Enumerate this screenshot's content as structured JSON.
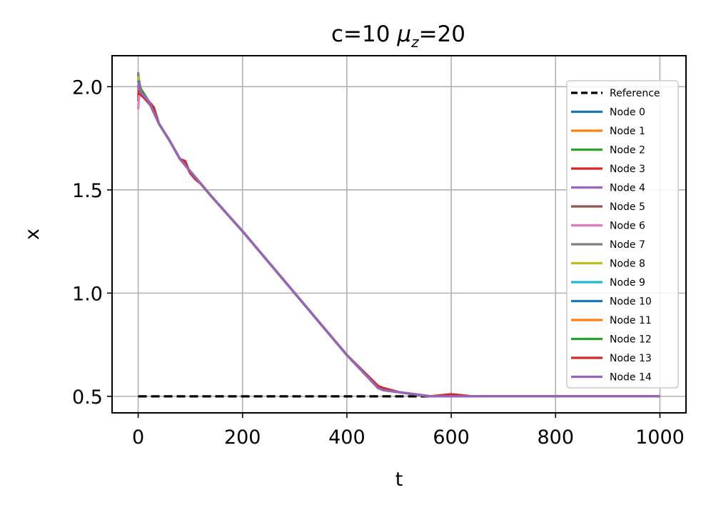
{
  "chart_data": {
    "type": "line",
    "title_main": "c=10 ",
    "title_mu": "μ",
    "title_sub": "z",
    "title_rest": "=20",
    "xlabel": "t",
    "ylabel": "x",
    "xlim": [
      -50,
      1050
    ],
    "ylim": [
      0.42,
      2.15
    ],
    "xticks": [
      0,
      200,
      400,
      600,
      800,
      1000
    ],
    "xtick_labels": [
      "0",
      "200",
      "400",
      "600",
      "800",
      "1000"
    ],
    "yticks": [
      0.5,
      1.0,
      1.5,
      2.0
    ],
    "ytick_labels": [
      "0.5",
      "1.0",
      "1.5",
      "2.0"
    ],
    "grid": true,
    "legend_position": "right",
    "reference": {
      "name": "Reference",
      "color": "#000000",
      "style": "dashed",
      "x": [
        0,
        1000
      ],
      "y": [
        0.5,
        0.5
      ]
    },
    "series": [
      {
        "name": "Node 0",
        "color": "#1f77b4",
        "x": [
          0,
          2,
          5,
          10,
          20,
          40,
          60,
          80,
          100,
          120,
          140,
          200,
          300,
          400,
          460,
          470,
          500,
          530,
          560,
          600,
          640,
          700,
          800,
          900,
          1000
        ],
        "y": [
          2.06,
          2.01,
          1.98,
          1.96,
          1.93,
          1.82,
          1.74,
          1.65,
          1.59,
          1.53,
          1.47,
          1.3,
          1.0,
          0.7,
          0.54,
          0.53,
          0.52,
          0.51,
          0.5,
          0.5,
          0.5,
          0.5,
          0.5,
          0.5,
          0.5
        ]
      },
      {
        "name": "Node 1",
        "color": "#ff7f0e",
        "x": [
          0,
          2,
          5,
          10,
          20,
          40,
          60,
          80,
          100,
          120,
          140,
          200,
          300,
          400,
          460,
          470,
          500,
          530,
          560,
          600,
          640,
          700,
          800,
          900,
          1000
        ],
        "y": [
          1.95,
          2.0,
          1.97,
          1.96,
          1.93,
          1.82,
          1.74,
          1.65,
          1.59,
          1.53,
          1.47,
          1.3,
          1.0,
          0.7,
          0.54,
          0.53,
          0.52,
          0.51,
          0.5,
          0.5,
          0.5,
          0.5,
          0.5,
          0.5,
          0.5
        ]
      },
      {
        "name": "Node 2",
        "color": "#2ca02c",
        "x": [
          0,
          2,
          5,
          10,
          20,
          40,
          60,
          80,
          100,
          120,
          140,
          200,
          300,
          400,
          460,
          470,
          500,
          530,
          560,
          600,
          640,
          700,
          800,
          900,
          1000
        ],
        "y": [
          2.04,
          2.02,
          1.99,
          1.97,
          1.93,
          1.82,
          1.74,
          1.65,
          1.59,
          1.53,
          1.47,
          1.3,
          1.0,
          0.7,
          0.54,
          0.53,
          0.52,
          0.51,
          0.5,
          0.5,
          0.5,
          0.5,
          0.5,
          0.5,
          0.5
        ]
      },
      {
        "name": "Node 3",
        "color": "#d62728",
        "x": [
          0,
          2,
          5,
          10,
          20,
          30,
          40,
          60,
          80,
          90,
          100,
          110,
          120,
          140,
          200,
          300,
          400,
          460,
          470,
          500,
          530,
          560,
          600,
          640,
          700,
          800,
          900,
          1000
        ],
        "y": [
          1.93,
          1.99,
          1.96,
          1.95,
          1.92,
          1.89,
          1.82,
          1.74,
          1.65,
          1.64,
          1.58,
          1.56,
          1.53,
          1.47,
          1.3,
          1.0,
          0.7,
          0.55,
          0.54,
          0.52,
          0.51,
          0.5,
          0.51,
          0.5,
          0.5,
          0.5,
          0.5,
          0.5
        ]
      },
      {
        "name": "Node 4",
        "color": "#9467bd",
        "x": [
          0,
          2,
          5,
          10,
          20,
          40,
          60,
          80,
          100,
          120,
          140,
          200,
          300,
          400,
          460,
          470,
          500,
          530,
          560,
          600,
          640,
          700,
          800,
          900,
          1000
        ],
        "y": [
          2.0,
          2.03,
          1.98,
          1.96,
          1.93,
          1.82,
          1.74,
          1.65,
          1.59,
          1.53,
          1.47,
          1.3,
          1.0,
          0.7,
          0.54,
          0.53,
          0.52,
          0.51,
          0.5,
          0.5,
          0.5,
          0.5,
          0.5,
          0.5,
          0.5
        ]
      },
      {
        "name": "Node 5",
        "color": "#8c564b",
        "x": [
          0,
          2,
          5,
          10,
          20,
          40,
          60,
          80,
          100,
          120,
          140,
          200,
          300,
          400,
          460,
          470,
          500,
          530,
          560,
          600,
          640,
          700,
          800,
          900,
          1000
        ],
        "y": [
          1.98,
          2.0,
          1.97,
          1.96,
          1.93,
          1.82,
          1.74,
          1.65,
          1.59,
          1.53,
          1.47,
          1.3,
          1.0,
          0.7,
          0.54,
          0.53,
          0.52,
          0.51,
          0.5,
          0.5,
          0.5,
          0.5,
          0.5,
          0.5,
          0.5
        ]
      },
      {
        "name": "Node 6",
        "color": "#e377c2",
        "x": [
          0,
          2,
          5,
          10,
          20,
          40,
          60,
          80,
          100,
          120,
          140,
          200,
          300,
          400,
          460,
          470,
          500,
          530,
          560,
          600,
          640,
          700,
          800,
          900,
          1000
        ],
        "y": [
          1.89,
          1.97,
          1.97,
          1.96,
          1.93,
          1.82,
          1.74,
          1.65,
          1.59,
          1.53,
          1.47,
          1.3,
          1.0,
          0.7,
          0.54,
          0.53,
          0.52,
          0.51,
          0.5,
          0.5,
          0.5,
          0.5,
          0.5,
          0.5,
          0.5
        ]
      },
      {
        "name": "Node 7",
        "color": "#7f7f7f",
        "x": [
          0,
          2,
          5,
          10,
          20,
          40,
          60,
          80,
          100,
          120,
          140,
          200,
          300,
          400,
          460,
          470,
          500,
          530,
          560,
          600,
          640,
          700,
          800,
          900,
          1000
        ],
        "y": [
          2.07,
          2.02,
          1.98,
          1.96,
          1.93,
          1.82,
          1.74,
          1.65,
          1.59,
          1.53,
          1.47,
          1.3,
          1.0,
          0.7,
          0.54,
          0.53,
          0.52,
          0.51,
          0.5,
          0.5,
          0.5,
          0.5,
          0.5,
          0.5,
          0.5
        ]
      },
      {
        "name": "Node 8",
        "color": "#bcbd22",
        "x": [
          0,
          2,
          5,
          10,
          20,
          40,
          60,
          80,
          100,
          120,
          140,
          200,
          300,
          400,
          460,
          470,
          500,
          530,
          560,
          600,
          640,
          700,
          800,
          900,
          1000
        ],
        "y": [
          2.05,
          2.01,
          1.98,
          1.96,
          1.93,
          1.82,
          1.74,
          1.65,
          1.59,
          1.53,
          1.47,
          1.3,
          1.0,
          0.7,
          0.54,
          0.53,
          0.52,
          0.51,
          0.5,
          0.5,
          0.5,
          0.5,
          0.5,
          0.5,
          0.5
        ]
      },
      {
        "name": "Node 9",
        "color": "#17becf",
        "x": [
          0,
          2,
          5,
          10,
          20,
          40,
          60,
          80,
          100,
          120,
          140,
          200,
          300,
          400,
          460,
          470,
          500,
          530,
          560,
          600,
          640,
          700,
          800,
          900,
          1000
        ],
        "y": [
          2.01,
          2.0,
          1.97,
          1.96,
          1.93,
          1.82,
          1.74,
          1.65,
          1.59,
          1.53,
          1.47,
          1.3,
          1.0,
          0.7,
          0.54,
          0.53,
          0.52,
          0.51,
          0.5,
          0.5,
          0.5,
          0.5,
          0.5,
          0.5,
          0.5
        ]
      },
      {
        "name": "Node 10",
        "color": "#1f77b4",
        "x": [
          0,
          2,
          5,
          10,
          20,
          40,
          60,
          80,
          100,
          120,
          140,
          200,
          300,
          400,
          460,
          470,
          500,
          530,
          560,
          600,
          640,
          700,
          800,
          900,
          1000
        ],
        "y": [
          2.03,
          2.01,
          1.98,
          1.96,
          1.93,
          1.82,
          1.74,
          1.65,
          1.59,
          1.53,
          1.47,
          1.3,
          1.0,
          0.7,
          0.54,
          0.53,
          0.52,
          0.51,
          0.5,
          0.5,
          0.5,
          0.5,
          0.5,
          0.5,
          0.5
        ]
      },
      {
        "name": "Node 11",
        "color": "#ff7f0e",
        "x": [
          0,
          2,
          5,
          10,
          20,
          40,
          60,
          80,
          100,
          120,
          140,
          200,
          300,
          400,
          460,
          470,
          500,
          530,
          560,
          600,
          640,
          700,
          800,
          900,
          1000
        ],
        "y": [
          1.97,
          1.99,
          1.97,
          1.96,
          1.93,
          1.82,
          1.74,
          1.65,
          1.59,
          1.53,
          1.47,
          1.3,
          1.0,
          0.7,
          0.54,
          0.53,
          0.52,
          0.51,
          0.5,
          0.5,
          0.5,
          0.5,
          0.5,
          0.5,
          0.5
        ]
      },
      {
        "name": "Node 12",
        "color": "#2ca02c",
        "x": [
          0,
          2,
          5,
          10,
          20,
          40,
          60,
          80,
          100,
          120,
          140,
          200,
          300,
          400,
          460,
          470,
          500,
          530,
          560,
          600,
          640,
          700,
          800,
          900,
          1000
        ],
        "y": [
          2.02,
          2.02,
          1.99,
          1.97,
          1.93,
          1.82,
          1.74,
          1.65,
          1.59,
          1.53,
          1.47,
          1.3,
          1.0,
          0.7,
          0.54,
          0.53,
          0.52,
          0.51,
          0.5,
          0.5,
          0.5,
          0.5,
          0.5,
          0.5,
          0.5
        ]
      },
      {
        "name": "Node 13",
        "color": "#d62728",
        "x": [
          0,
          2,
          5,
          10,
          20,
          30,
          40,
          60,
          80,
          90,
          100,
          110,
          120,
          140,
          200,
          300,
          400,
          460,
          470,
          500,
          530,
          560,
          600,
          640,
          700,
          800,
          900,
          1000
        ],
        "y": [
          1.96,
          1.98,
          1.96,
          1.95,
          1.93,
          1.9,
          1.82,
          1.74,
          1.65,
          1.63,
          1.58,
          1.55,
          1.53,
          1.47,
          1.3,
          1.0,
          0.7,
          0.55,
          0.54,
          0.52,
          0.51,
          0.5,
          0.51,
          0.5,
          0.5,
          0.5,
          0.5,
          0.5
        ]
      },
      {
        "name": "Node 14",
        "color": "#9467bd",
        "x": [
          0,
          2,
          5,
          10,
          20,
          40,
          60,
          80,
          100,
          120,
          140,
          200,
          300,
          400,
          460,
          470,
          500,
          530,
          560,
          600,
          640,
          700,
          800,
          900,
          1000
        ],
        "y": [
          1.99,
          2.02,
          1.97,
          1.96,
          1.93,
          1.82,
          1.74,
          1.65,
          1.59,
          1.53,
          1.47,
          1.3,
          1.0,
          0.7,
          0.54,
          0.53,
          0.52,
          0.51,
          0.5,
          0.5,
          0.5,
          0.5,
          0.5,
          0.5,
          0.5
        ]
      }
    ]
  }
}
